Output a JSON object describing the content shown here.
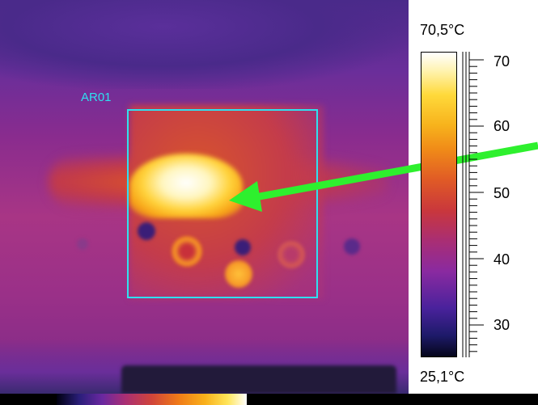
{
  "measurement": {
    "label": "AR01"
  },
  "scale": {
    "max_label": "70,5°C",
    "min_label": "25,1°C",
    "ticks": [
      "70",
      "60",
      "50",
      "40",
      "30"
    ]
  },
  "colors": {
    "box": "#2fe0f0",
    "arrow": "#2ef02e"
  }
}
